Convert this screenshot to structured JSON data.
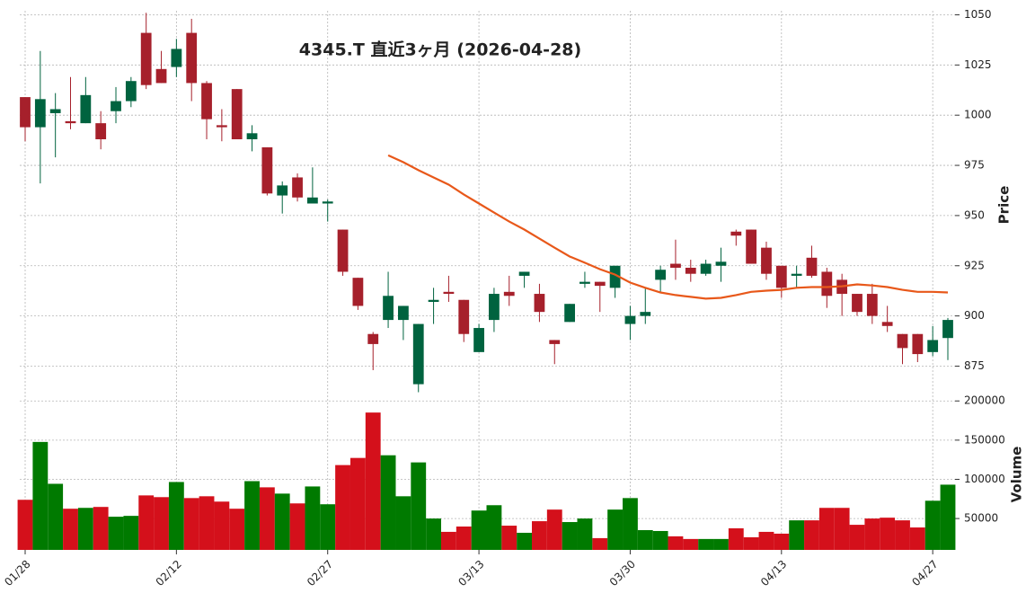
{
  "chart_data": {
    "type": "candlestick",
    "title": "4345.T  直近3ヶ月  (2026-04-28)",
    "ylabel": "Price",
    "volume_label": "Volume",
    "categories": [
      "01/28",
      null,
      null,
      null,
      null,
      null,
      null,
      null,
      null,
      null,
      "02/12",
      null,
      null,
      null,
      null,
      null,
      null,
      null,
      null,
      null,
      "02/27",
      null,
      null,
      null,
      null,
      null,
      null,
      null,
      null,
      null,
      "03/13",
      null,
      null,
      null,
      null,
      null,
      null,
      null,
      null,
      null,
      "03/30",
      null,
      null,
      null,
      null,
      null,
      null,
      null,
      null,
      null,
      "04/13",
      null,
      null,
      null,
      null,
      null,
      null,
      null,
      null,
      null,
      "04/27",
      null
    ],
    "open": [
      1009,
      994,
      1001,
      997,
      996,
      996,
      1002,
      1007,
      1041,
      1023,
      1024,
      1041,
      1016,
      995,
      1013,
      988,
      984,
      960,
      969,
      956,
      956,
      943,
      919,
      891,
      898,
      898,
      866,
      907,
      912,
      908,
      882,
      898,
      912,
      920,
      911,
      888,
      897,
      916,
      917,
      914,
      896,
      900,
      918,
      926,
      924,
      921,
      925,
      942,
      943,
      934,
      925,
      920,
      929,
      922,
      918,
      911,
      911,
      897,
      891,
      891,
      882,
      889
    ],
    "high": [
      1009,
      1032,
      1011,
      1019,
      1019,
      1002,
      1014,
      1019,
      1051,
      1032,
      1038,
      1048,
      1017,
      1003,
      1013,
      995,
      984,
      967,
      971,
      974,
      958,
      943,
      919,
      892,
      922,
      905,
      896,
      914,
      920,
      908,
      896,
      914,
      920,
      922,
      916,
      888,
      906,
      922,
      917,
      925,
      905,
      914,
      925,
      938,
      928,
      928,
      934,
      943,
      943,
      937,
      925,
      925,
      935,
      924,
      921,
      911,
      916,
      905,
      891,
      891,
      895,
      899
    ],
    "low": [
      987,
      966,
      979,
      993,
      996,
      983,
      996,
      1004,
      1013,
      1016,
      1019,
      1007,
      988,
      987,
      988,
      982,
      960,
      951,
      957,
      956,
      947,
      920,
      903,
      873,
      894,
      888,
      862,
      896,
      907,
      887,
      882,
      892,
      905,
      914,
      897,
      876,
      897,
      914,
      902,
      909,
      888,
      896,
      912,
      918,
      917,
      920,
      917,
      935,
      926,
      918,
      909,
      914,
      919,
      904,
      900,
      900,
      896,
      892,
      876,
      877,
      880,
      878
    ],
    "close": [
      994,
      1008,
      1003,
      996,
      1010,
      988,
      1007,
      1017,
      1015,
      1016,
      1033,
      1016,
      998,
      994,
      988,
      991,
      961,
      965,
      959,
      959,
      957,
      922,
      905,
      886,
      910,
      905,
      896,
      908,
      911,
      891,
      894,
      911,
      910,
      922,
      902,
      886,
      906,
      917,
      915,
      925,
      900,
      902,
      923,
      924,
      921,
      926,
      927,
      940,
      926,
      921,
      914,
      921,
      920,
      910,
      911,
      902,
      900,
      895,
      884,
      881,
      888,
      898
    ],
    "volume": [
      73900,
      147700,
      94300,
      62500,
      63600,
      64800,
      52300,
      53400,
      79500,
      77300,
      96600,
      76100,
      78400,
      71600,
      62500,
      97700,
      89800,
      81800,
      69300,
      90900,
      68200,
      118200,
      127300,
      185200,
      130700,
      78400,
      121600,
      50000,
      33000,
      39800,
      60200,
      67000,
      40900,
      31800,
      46600,
      61400,
      45500,
      50000,
      25000,
      61400,
      76100,
      35200,
      34100,
      27300,
      23900,
      23900,
      23900,
      37500,
      26100,
      33000,
      30700,
      47700,
      47700,
      63600,
      63600,
      42000,
      50000,
      51100,
      47700,
      38600,
      72700,
      93200
    ],
    "ma": {
      "color": "#e8581a",
      "values": [
        null,
        null,
        null,
        null,
        null,
        null,
        null,
        null,
        null,
        null,
        null,
        null,
        null,
        null,
        null,
        null,
        null,
        null,
        null,
        null,
        null,
        null,
        null,
        null,
        980,
        976.6,
        972.6,
        969,
        965.4,
        960.5,
        956,
        951.5,
        947,
        943,
        938.5,
        934,
        929.6,
        926.5,
        923.3,
        920.6,
        916.6,
        914,
        911.7,
        910.4,
        909.5,
        908.6,
        909,
        910.4,
        912,
        912.6,
        913,
        914,
        914.4,
        914.4,
        914.8,
        915.7,
        915.2,
        914.4,
        913,
        912,
        912,
        911.7
      ]
    },
    "up_color": "#00633f",
    "down_color": "#a6202b",
    "volume_up_color": "#007a00",
    "volume_down_color": "#d4101b",
    "ylim": [
      860,
      1052
    ],
    "yticks": [
      875,
      900,
      925,
      950,
      975,
      1000,
      1025,
      1050
    ],
    "volume_ylim": [
      10000,
      206000
    ],
    "volume_yticks": [
      50000,
      100000,
      150000,
      200000
    ],
    "grid": true
  }
}
